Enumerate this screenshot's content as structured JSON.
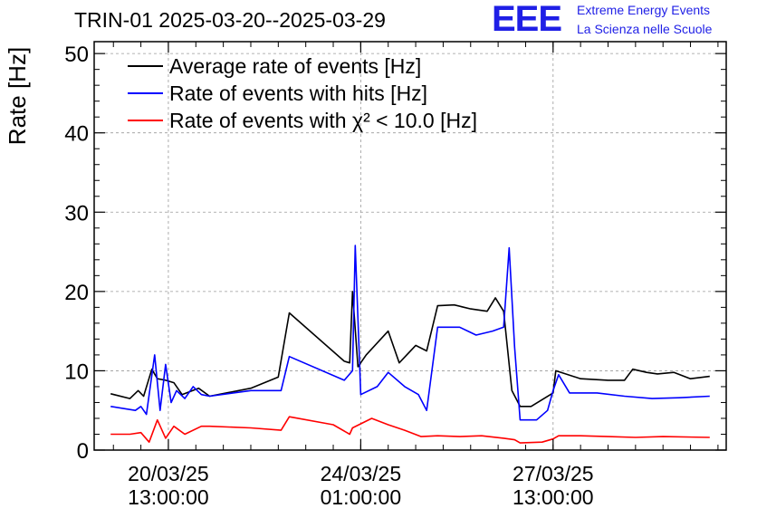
{
  "header": {
    "title": "TRIN-01 2025-03-20--2025-03-29",
    "logo_mark": "EEE",
    "logo_line1": "Extreme Energy Events",
    "logo_line2": "La Scienza nelle Scuole"
  },
  "chart_data": {
    "type": "line",
    "title": "TRIN-01 2025-03-20--2025-03-29",
    "xlabel": "",
    "ylabel": "Rate [Hz]",
    "ylim": [
      0,
      51.5
    ],
    "yticks": [
      0,
      10,
      20,
      30,
      40,
      50
    ],
    "xticks": [
      {
        "x": 1.0,
        "line1": "20/03/25",
        "line2": "13:00:00"
      },
      {
        "x": 4.5,
        "line1": "24/03/25",
        "line2": "01:00:00"
      },
      {
        "x": 8.0,
        "line1": "27/03/25",
        "line2": "13:00:00"
      }
    ],
    "x_unit_note": "days since 2025-03-19 13:00",
    "xlim": [
      -0.35,
      11.15
    ],
    "grid": true,
    "legend_position": "top-left",
    "series": [
      {
        "name": "Average rate of events [Hz]",
        "color": "#000000",
        "points": [
          [
            -0.05,
            7.1
          ],
          [
            0.3,
            6.5
          ],
          [
            0.45,
            7.5
          ],
          [
            0.55,
            6.8
          ],
          [
            0.7,
            10.2
          ],
          [
            0.8,
            9.0
          ],
          [
            0.95,
            8.8
          ],
          [
            1.1,
            8.5
          ],
          [
            1.25,
            7.0
          ],
          [
            1.55,
            7.8
          ],
          [
            1.75,
            6.8
          ],
          [
            2.5,
            7.8
          ],
          [
            3.0,
            9.2
          ],
          [
            3.2,
            17.3
          ],
          [
            4.2,
            11.2
          ],
          [
            4.3,
            11.0
          ],
          [
            4.35,
            20.0
          ],
          [
            4.45,
            10.5
          ],
          [
            4.6,
            12.0
          ],
          [
            5.0,
            15.0
          ],
          [
            5.2,
            11.0
          ],
          [
            5.5,
            13.2
          ],
          [
            5.7,
            12.5
          ],
          [
            5.9,
            18.2
          ],
          [
            6.2,
            18.3
          ],
          [
            6.5,
            17.8
          ],
          [
            6.8,
            17.5
          ],
          [
            6.95,
            19.2
          ],
          [
            7.1,
            17.5
          ],
          [
            7.25,
            7.5
          ],
          [
            7.4,
            5.5
          ],
          [
            7.6,
            5.5
          ],
          [
            8.0,
            7.2
          ],
          [
            8.05,
            10.0
          ],
          [
            8.5,
            9.0
          ],
          [
            9.0,
            8.8
          ],
          [
            9.3,
            8.8
          ],
          [
            9.45,
            10.2
          ],
          [
            9.7,
            9.8
          ],
          [
            9.9,
            9.6
          ],
          [
            10.2,
            9.8
          ],
          [
            10.5,
            9.0
          ],
          [
            10.85,
            9.3
          ]
        ]
      },
      {
        "name": "Rate of events with hits [Hz]",
        "color": "#0000ff",
        "points": [
          [
            -0.05,
            5.5
          ],
          [
            0.4,
            5.0
          ],
          [
            0.5,
            5.5
          ],
          [
            0.6,
            4.5
          ],
          [
            0.75,
            12.0
          ],
          [
            0.85,
            5.0
          ],
          [
            0.95,
            10.8
          ],
          [
            1.05,
            6.0
          ],
          [
            1.15,
            7.5
          ],
          [
            1.3,
            6.5
          ],
          [
            1.45,
            8.0
          ],
          [
            1.6,
            7.0
          ],
          [
            1.75,
            6.8
          ],
          [
            2.5,
            7.5
          ],
          [
            3.05,
            7.5
          ],
          [
            3.2,
            11.8
          ],
          [
            4.2,
            8.8
          ],
          [
            4.35,
            10.0
          ],
          [
            4.4,
            25.8
          ],
          [
            4.5,
            7.0
          ],
          [
            4.8,
            8.0
          ],
          [
            5.0,
            9.8
          ],
          [
            5.3,
            8.0
          ],
          [
            5.55,
            7.0
          ],
          [
            5.7,
            5.0
          ],
          [
            5.9,
            15.5
          ],
          [
            6.3,
            15.5
          ],
          [
            6.6,
            14.5
          ],
          [
            6.9,
            15.0
          ],
          [
            7.1,
            15.5
          ],
          [
            7.2,
            25.5
          ],
          [
            7.3,
            13.0
          ],
          [
            7.4,
            3.8
          ],
          [
            7.7,
            3.8
          ],
          [
            7.9,
            5.0
          ],
          [
            8.0,
            7.5
          ],
          [
            8.1,
            9.5
          ],
          [
            8.3,
            7.2
          ],
          [
            8.8,
            7.2
          ],
          [
            9.3,
            6.8
          ],
          [
            9.8,
            6.5
          ],
          [
            10.3,
            6.6
          ],
          [
            10.85,
            6.8
          ]
        ]
      },
      {
        "name": "Rate of events with χ² < 10.0 [Hz]",
        "color": "#ff0000",
        "points": [
          [
            -0.05,
            2.0
          ],
          [
            0.3,
            2.0
          ],
          [
            0.5,
            2.2
          ],
          [
            0.65,
            1.0
          ],
          [
            0.8,
            3.8
          ],
          [
            0.95,
            1.5
          ],
          [
            1.1,
            3.0
          ],
          [
            1.3,
            2.0
          ],
          [
            1.6,
            3.0
          ],
          [
            1.75,
            3.0
          ],
          [
            2.5,
            2.8
          ],
          [
            3.05,
            2.5
          ],
          [
            3.2,
            4.2
          ],
          [
            4.0,
            3.2
          ],
          [
            4.3,
            2.0
          ],
          [
            4.35,
            2.8
          ],
          [
            4.7,
            4.0
          ],
          [
            5.0,
            3.2
          ],
          [
            5.3,
            2.5
          ],
          [
            5.6,
            1.7
          ],
          [
            5.9,
            1.8
          ],
          [
            6.3,
            1.7
          ],
          [
            6.7,
            1.8
          ],
          [
            7.1,
            1.5
          ],
          [
            7.3,
            1.3
          ],
          [
            7.4,
            0.9
          ],
          [
            7.8,
            1.0
          ],
          [
            8.0,
            1.4
          ],
          [
            8.1,
            1.8
          ],
          [
            8.5,
            1.8
          ],
          [
            9.0,
            1.7
          ],
          [
            9.5,
            1.6
          ],
          [
            10.0,
            1.7
          ],
          [
            10.85,
            1.6
          ]
        ]
      }
    ]
  }
}
